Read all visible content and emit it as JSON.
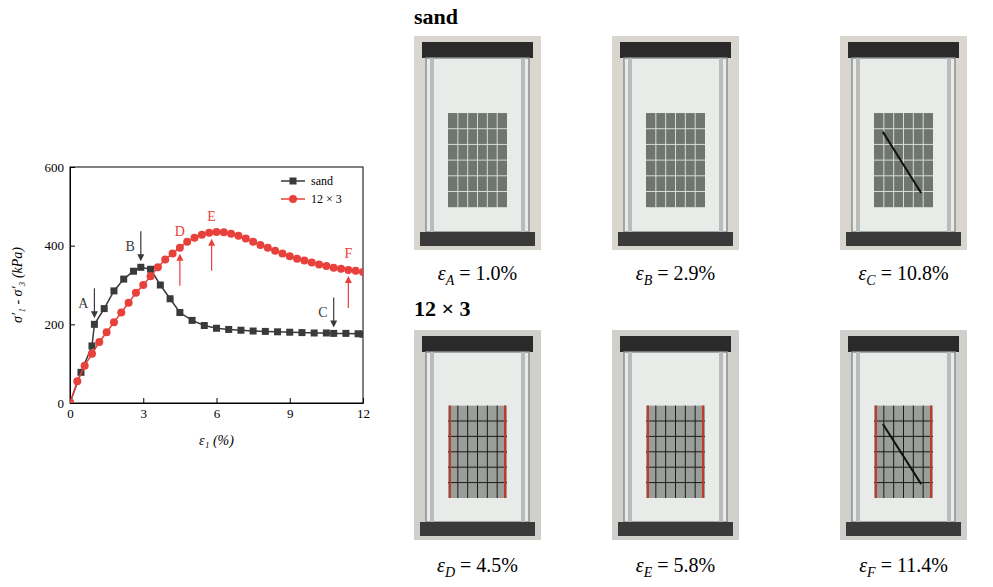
{
  "chart_data": {
    "type": "line",
    "x_label": "ε₁ (%)",
    "y_label": "σ′₁ - σ′₃ (kPa)",
    "xlim": [
      0,
      12
    ],
    "ylim": [
      0,
      600
    ],
    "xticks": [
      0,
      3,
      6,
      9,
      12
    ],
    "yticks": [
      0,
      200,
      400,
      600
    ],
    "legend": "upper right",
    "series": [
      {
        "name": "sand",
        "color": "#3a3a3a",
        "marker": "square",
        "line_style": "solid",
        "x": [
          0,
          0.45,
          0.9,
          1.0,
          1.4,
          1.8,
          2.2,
          2.6,
          2.9,
          3.3,
          3.7,
          4.1,
          4.5,
          5.0,
          5.5,
          6.0,
          6.5,
          7.0,
          7.5,
          8.0,
          8.5,
          9.0,
          9.5,
          10.0,
          10.5,
          10.8,
          11.3,
          11.8,
          12.0
        ],
        "values": [
          0,
          78,
          145,
          200,
          240,
          285,
          315,
          335,
          345,
          340,
          300,
          265,
          230,
          210,
          197,
          190,
          187,
          185,
          183,
          182,
          181,
          180,
          179,
          178,
          178,
          177,
          177,
          176,
          175
        ],
        "annotations": [
          {
            "label": "A",
            "x": 1.0,
            "y": 200
          },
          {
            "label": "B",
            "x": 2.9,
            "y": 345
          },
          {
            "label": "C",
            "x": 10.8,
            "y": 177
          }
        ]
      },
      {
        "name": "12 × 3",
        "color": "#e8403a",
        "marker": "circle",
        "line_style": "solid",
        "x": [
          0,
          0.3,
          0.6,
          0.9,
          1.2,
          1.5,
          1.8,
          2.1,
          2.4,
          2.7,
          3.0,
          3.3,
          3.6,
          3.9,
          4.2,
          4.5,
          4.8,
          5.1,
          5.4,
          5.7,
          6.0,
          6.3,
          6.6,
          6.9,
          7.2,
          7.5,
          7.8,
          8.1,
          8.4,
          8.7,
          9.0,
          9.3,
          9.6,
          9.9,
          10.2,
          10.5,
          10.8,
          11.1,
          11.4,
          11.7,
          12.0
        ],
        "values": [
          0,
          55,
          95,
          125,
          155,
          180,
          205,
          230,
          255,
          280,
          300,
          322,
          345,
          365,
          380,
          395,
          410,
          420,
          428,
          433,
          435,
          434,
          430,
          425,
          418,
          410,
          402,
          395,
          387,
          380,
          373,
          367,
          362,
          357,
          352,
          348,
          344,
          341,
          338,
          336,
          333
        ],
        "annotations": [
          {
            "label": "D",
            "x": 4.5,
            "y": 395
          },
          {
            "label": "E",
            "x": 5.8,
            "y": 433
          },
          {
            "label": "F",
            "x": 11.4,
            "y": 338
          }
        ]
      }
    ]
  },
  "photos": [
    {
      "title": "sand",
      "captions": [
        {
          "symbol": "ε",
          "sub": "A",
          "rest": "= 1.0%"
        },
        {
          "symbol": "ε",
          "sub": "B",
          "rest": "= 2.9%"
        },
        {
          "symbol": "ε",
          "sub": "C",
          "rest": "= 10.8%"
        }
      ]
    },
    {
      "title": "12 × 3",
      "captions": [
        {
          "symbol": "ε",
          "sub": "D",
          "rest": "= 4.5%"
        },
        {
          "symbol": "ε",
          "sub": "E",
          "rest": "= 5.8%"
        },
        {
          "symbol": "ε",
          "sub": "F",
          "rest": "= 11.4%"
        }
      ]
    }
  ]
}
